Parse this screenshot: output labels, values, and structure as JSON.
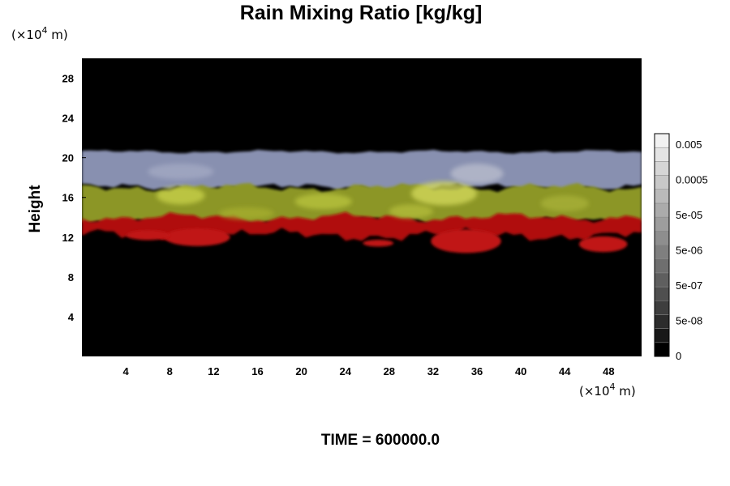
{
  "chart_data": {
    "type": "heatmap",
    "title": "Rain Mixing Ratio [kg/kg]",
    "ylabel": "Height",
    "x_unit_prefix": "(×10",
    "x_unit_exp": "4",
    "x_unit_suffix": " m)",
    "y_unit_prefix": "(×10",
    "y_unit_exp": "4",
    "y_unit_suffix": " m)",
    "xlim": [
      0,
      51
    ],
    "ylim": [
      0,
      30
    ],
    "x_ticks": [
      4,
      8,
      12,
      16,
      20,
      24,
      28,
      32,
      36,
      40,
      44,
      48
    ],
    "y_ticks": [
      4,
      8,
      12,
      16,
      20,
      24,
      28
    ],
    "layers": [
      {
        "name": "",
        "color": "#8890b0",
        "y_bottom": 17.0,
        "y_top": 20.6
      },
      {
        "name": "",
        "color": "#8c9626",
        "y_bottom": 13.6,
        "y_top": 17.0
      },
      {
        "name": "",
        "color": "#b00c0c",
        "y_bottom": 12.2,
        "y_top": 14.0
      }
    ],
    "colorbar": {
      "labels": [
        "0.005",
        "0.0005",
        "5e-05",
        "5e-06",
        "5e-07",
        "5e-08",
        "0"
      ],
      "levels": 16,
      "bottom_color": "#000000",
      "top_color": "#f2f2f2"
    },
    "footer_label": "TIME = 600000.0"
  }
}
